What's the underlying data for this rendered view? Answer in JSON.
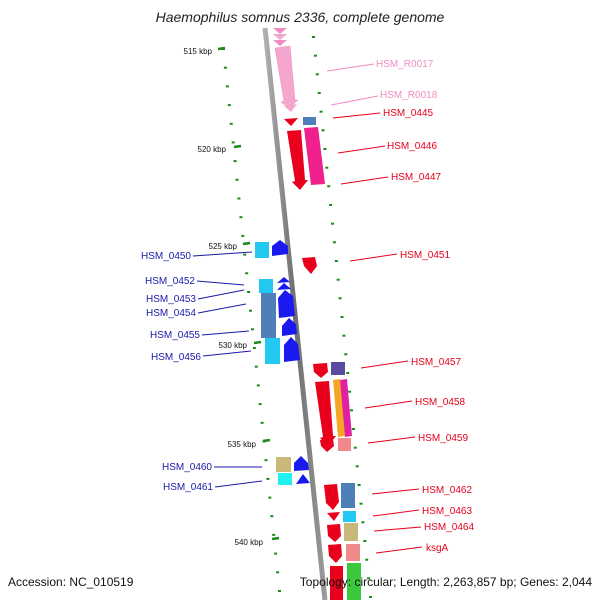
{
  "title": "Haemophilus somnus 2336, complete genome",
  "footer": {
    "accession": "Accession: NC_010519",
    "topology": "Topology: circular; Length: 2,263,857 bp; Genes: 2,044"
  },
  "scale_marks": [
    {
      "label": "515 kbp"
    },
    {
      "label": "520 kbp"
    },
    {
      "label": "525 kbp"
    },
    {
      "label": "530 kbp"
    },
    {
      "label": "535 kbp"
    },
    {
      "label": "540 kbp"
    }
  ],
  "gene_labels": {
    "right": [
      {
        "text": "HSM_R0017",
        "color": "#f08cc0"
      },
      {
        "text": "HSM_R0018",
        "color": "#f08cc0"
      },
      {
        "text": "HSM_0445",
        "color": "#e8001c"
      },
      {
        "text": "HSM_0446",
        "color": "#e8001c"
      },
      {
        "text": "HSM_0447",
        "color": "#e8001c"
      },
      {
        "text": "HSM_0451",
        "color": "#e8001c"
      },
      {
        "text": "HSM_0457",
        "color": "#e8001c"
      },
      {
        "text": "HSM_0458",
        "color": "#e8001c"
      },
      {
        "text": "HSM_0459",
        "color": "#e8001c"
      },
      {
        "text": "HSM_0462",
        "color": "#e8001c"
      },
      {
        "text": "HSM_0463",
        "color": "#e8001c"
      },
      {
        "text": "HSM_0464",
        "color": "#e8001c"
      },
      {
        "text": "ksgA",
        "color": "#e8001c"
      }
    ],
    "left": [
      {
        "text": "HSM_0450",
        "color": "#1a1aa8"
      },
      {
        "text": "HSM_0452",
        "color": "#1a1aa8"
      },
      {
        "text": "HSM_0453",
        "color": "#1a1aa8"
      },
      {
        "text": "HSM_0454",
        "color": "#1a1aa8"
      },
      {
        "text": "HSM_0455",
        "color": "#1a1aa8"
      },
      {
        "text": "HSM_0456",
        "color": "#1a1aa8"
      },
      {
        "text": "HSM_0460",
        "color": "#1a1aa8"
      },
      {
        "text": "HSM_0461",
        "color": "#1a1aa8"
      }
    ]
  }
}
